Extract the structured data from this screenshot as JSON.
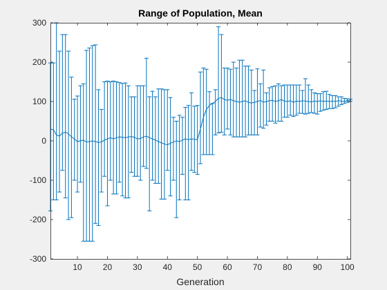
{
  "colors": {
    "figure_bg": "#f0f0f0",
    "axes_bg": "#ffffff",
    "axis": "#262626",
    "series": "#0072bd"
  },
  "chart_data": {
    "type": "line",
    "title": "Range of Population, Mean",
    "xlabel": "Generation",
    "ylabel": "",
    "xlim": [
      1,
      101
    ],
    "ylim": [
      -300,
      300
    ],
    "x_ticks": [
      10,
      20,
      30,
      40,
      50,
      60,
      70,
      80,
      90,
      100
    ],
    "x_tick_labels": [
      "10",
      "20",
      "30",
      "40",
      "50",
      "60",
      "70",
      "80",
      "90",
      "100"
    ],
    "y_ticks": [
      -300,
      -200,
      -100,
      0,
      100,
      200,
      300
    ],
    "y_tick_labels": [
      "-300",
      "-200",
      "-100",
      "0",
      "100",
      "200",
      "300"
    ],
    "grid": false,
    "legend": "none",
    "series": [
      {
        "x": [
          1,
          2,
          3,
          4,
          5,
          6,
          7,
          8,
          9,
          10,
          11,
          12,
          13,
          14,
          15,
          16,
          17,
          18,
          19,
          20,
          21,
          22,
          23,
          24,
          25,
          26,
          27,
          28,
          29,
          30,
          31,
          32,
          33,
          34,
          35,
          36,
          37,
          38,
          39,
          40,
          41,
          42,
          43,
          44,
          45,
          46,
          47,
          48,
          49,
          50,
          51,
          52,
          53,
          54,
          55,
          56,
          57,
          58,
          59,
          60,
          61,
          62,
          63,
          64,
          65,
          66,
          67,
          68,
          69,
          70,
          71,
          72,
          73,
          74,
          75,
          76,
          77,
          78,
          79,
          80,
          81,
          82,
          83,
          84,
          85,
          86,
          87,
          88,
          89,
          90,
          91,
          92,
          93,
          94,
          95,
          96,
          97,
          98,
          99,
          100,
          101
        ],
        "mean": [
          30,
          28,
          15,
          12,
          20,
          22,
          18,
          10,
          5,
          -2,
          0,
          2,
          -3,
          -2,
          0,
          -2,
          -4,
          -3,
          2,
          5,
          8,
          5,
          8,
          10,
          9,
          8,
          10,
          11,
          9,
          5,
          6,
          10,
          12,
          8,
          5,
          2,
          -2,
          -5,
          -8,
          -10,
          -6,
          -3,
          0,
          -2,
          2,
          5,
          3,
          5,
          4,
          3,
          30,
          60,
          80,
          90,
          95,
          100,
          108,
          110,
          105,
          103,
          105,
          102,
          100,
          98,
          100,
          102,
          98,
          96,
          98,
          100,
          103,
          98,
          100,
          102,
          103,
          100,
          102,
          105,
          101,
          100,
          102,
          98,
          101,
          100,
          102,
          101,
          100,
          99,
          101,
          100,
          102,
          100,
          101,
          100,
          101,
          100,
          102,
          101,
          100,
          103,
          102
        ],
        "max": [
          198,
          198,
          300,
          228,
          270,
          270,
          228,
          162,
          106,
          114,
          140,
          145,
          230,
          236,
          242,
          244,
          130,
          80,
          150,
          152,
          150,
          152,
          150,
          148,
          146,
          147,
          140,
          112,
          112,
          140,
          140,
          140,
          210,
          112,
          126,
          112,
          132,
          132,
          130,
          130,
          110,
          60,
          50,
          65,
          60,
          85,
          90,
          122,
          88,
          90,
          175,
          185,
          182,
          125,
          95,
          130,
          290,
          270,
          185,
          185,
          182,
          200,
          185,
          205,
          205,
          190,
          190,
          180,
          128,
          183,
          145,
          180,
          122,
          135,
          138,
          140,
          145,
          140,
          142,
          142,
          142,
          142,
          142,
          142,
          128,
          158,
          142,
          130,
          122,
          120,
          120,
          125,
          126,
          118,
          115,
          115,
          112,
          112,
          108,
          107,
          106
        ],
        "min": [
          -178,
          -150,
          -150,
          -130,
          -75,
          -145,
          -200,
          -195,
          -100,
          -130,
          -105,
          -255,
          -255,
          -255,
          -255,
          -210,
          -215,
          -130,
          -90,
          -165,
          -100,
          -135,
          -135,
          -105,
          -140,
          -145,
          -145,
          -80,
          -90,
          -90,
          -100,
          -65,
          -70,
          -178,
          -100,
          -108,
          -108,
          -148,
          -148,
          -75,
          -140,
          -100,
          -195,
          -150,
          -85,
          -150,
          -150,
          -75,
          -80,
          -85,
          -58,
          -35,
          -35,
          -35,
          -35,
          15,
          20,
          22,
          15,
          30,
          15,
          10,
          10,
          10,
          10,
          10,
          15,
          15,
          15,
          15,
          35,
          32,
          40,
          50,
          50,
          45,
          50,
          50,
          60,
          60,
          65,
          62,
          65,
          70,
          70,
          68,
          70,
          72,
          70,
          68,
          75,
          78,
          80,
          82,
          82,
          84,
          88,
          92,
          95,
          98,
          100
        ]
      }
    ]
  }
}
